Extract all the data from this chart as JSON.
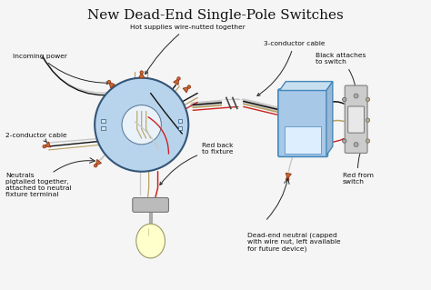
{
  "title": "New Dead-End Single-Pole Switches",
  "title_fontsize": 11,
  "bg_color": "#f5f5f5",
  "labels": {
    "incoming_power": "Incoming power",
    "hot_supplies": "Hot supplies wire-nutted together",
    "two_conductor": "2-conductor cable",
    "three_conductor": "3-conductor cable",
    "neutrals": "Neutrals\npigtailed together,\nattached to neutral\nfixture terminal",
    "red_back": "Red back\nto fixture",
    "black_attaches": "Black attaches\nto switch",
    "dead_end": "Dead-end neutral (capped\nwith wire nut, left available\nfor future device)",
    "red_from": "Red from\nswitch"
  },
  "colors": {
    "box_fill": "#a8c8e8",
    "box_edge": "#4488bb",
    "circle_fill": "#b8d4ec",
    "circle_edge": "#335577",
    "switch_body": "#cccccc",
    "switch_edge": "#888888",
    "wire_black": "#111111",
    "wire_white": "#c8c8c8",
    "wire_red": "#cc2222",
    "wire_tan": "#b8a060",
    "wire_green": "#446644",
    "cap_fill": "#cc6633",
    "cap_edge": "#883311",
    "lamp_globe": "#ffffcc",
    "lamp_base": "#bbbbbb",
    "text_color": "#111111",
    "arrow_color": "#222222"
  },
  "jx": 0.38,
  "jy": 0.52,
  "jr": 0.13
}
